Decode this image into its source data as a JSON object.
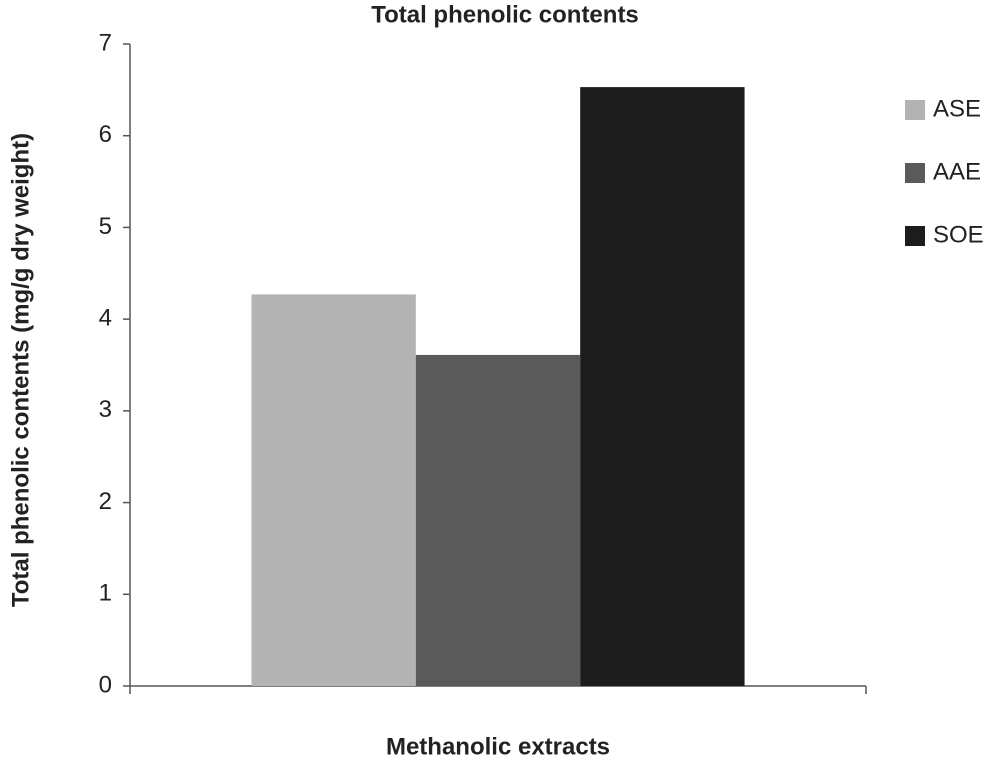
{
  "chart_data": {
    "type": "bar",
    "title": "Total phenolic contents",
    "x_label": "Methanolic extracts",
    "y_label": "Total phenolic contents (mg/g dry weight)",
    "categories": [
      null
    ],
    "series": [
      {
        "name": "ASE",
        "color": "#b3b3b3",
        "values": [
          4.27
        ]
      },
      {
        "name": "AAE",
        "color": "#5a5a5a",
        "values": [
          3.61
        ]
      },
      {
        "name": "SOE",
        "color": "#1c1c1c",
        "values": [
          6.53
        ]
      }
    ],
    "ylim": [
      0,
      7
    ],
    "yticks": [
      0,
      1,
      2,
      3,
      4,
      5,
      6,
      7
    ],
    "grid": false,
    "legend": "right"
  }
}
